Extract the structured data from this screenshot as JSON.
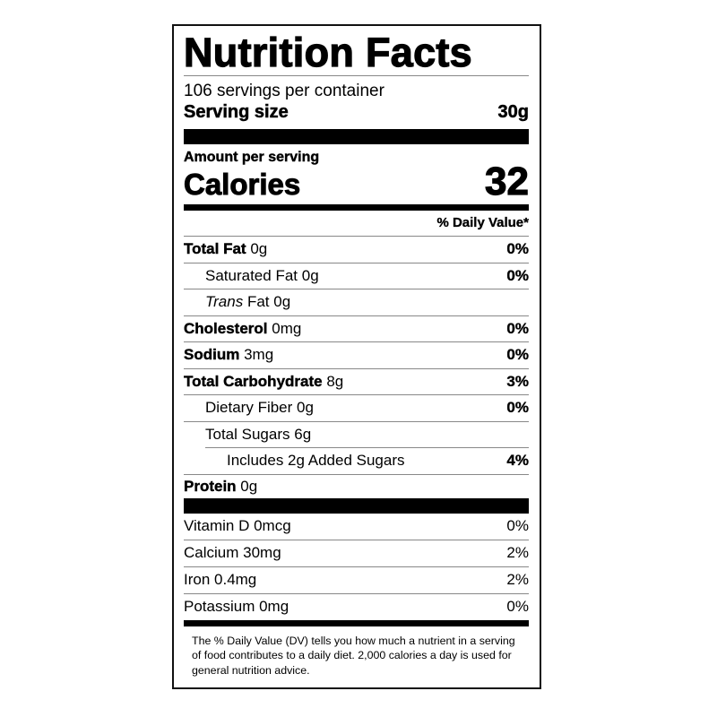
{
  "title": "Nutrition Facts",
  "servings_per_container": "106 servings per container",
  "serving_size": {
    "label": "Serving size",
    "value": "30g"
  },
  "amount_per_serving": "Amount per serving",
  "calories": {
    "label": "Calories",
    "value": "32"
  },
  "daily_value_header": "% Daily Value*",
  "nutrients": [
    {
      "name": "Total Fat",
      "amount": "0g",
      "dv": "0%"
    },
    {
      "name": "Saturated Fat",
      "amount": "0g",
      "dv": "0%"
    },
    {
      "name": "Trans",
      "name_suffix": "Fat",
      "amount": "0g",
      "dv": ""
    },
    {
      "name": "Cholesterol",
      "amount": "0mg",
      "dv": "0%"
    },
    {
      "name": "Sodium",
      "amount": "3mg",
      "dv": "0%"
    },
    {
      "name": "Total Carbohydrate",
      "amount": "8g",
      "dv": "3%"
    },
    {
      "name": "Dietary Fiber",
      "amount": "0g",
      "dv": "0%"
    },
    {
      "name": "Total Sugars",
      "amount": "6g",
      "dv": ""
    },
    {
      "name": "Includes 2g Added Sugars",
      "amount": "",
      "dv": "4%"
    },
    {
      "name": "Protein",
      "amount": "0g",
      "dv": ""
    }
  ],
  "vitamins": [
    {
      "text": "Vitamin D 0mcg",
      "dv": "0%"
    },
    {
      "text": "Calcium 30mg",
      "dv": "2%"
    },
    {
      "text": "Iron 0.4mg",
      "dv": "2%"
    },
    {
      "text": "Potassium 0mg",
      "dv": "0%"
    }
  ],
  "footnote": "The % Daily Value (DV) tells you how much a nutrient in a serving of food contributes to a daily diet. 2,000 calories a day is used for general nutrition advice."
}
